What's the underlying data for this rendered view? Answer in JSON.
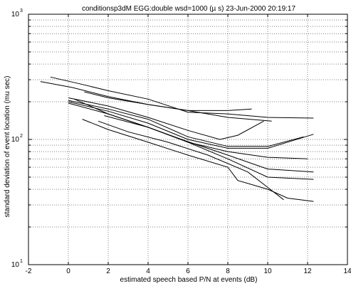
{
  "chart_data": {
    "type": "line",
    "title": "conditionsp3dM EGG:double wsd=1000 (µ s)  23-Jun-2000 20:19:17",
    "xlabel": "estimated speech based P/N at events (dB)",
    "ylabel": "standard deviation of event location (mu sec)",
    "xlim": [
      -2,
      14
    ],
    "ylim": [
      10,
      1000
    ],
    "yscale": "log",
    "grid": true,
    "x_ticks": [
      "-2",
      "0",
      "2",
      "4",
      "6",
      "8",
      "10",
      "12",
      "14"
    ],
    "y_ticks": [
      {
        "base": "10",
        "exp": "1",
        "value": 10
      },
      {
        "base": "10",
        "exp": "2",
        "value": 100
      },
      {
        "base": "10",
        "exp": "3",
        "value": 1000
      }
    ],
    "line_color": "#000000",
    "series": [
      {
        "x": [
          -1.4,
          0.2,
          2,
          4,
          6,
          8,
          9.2
        ],
        "y": [
          290,
          260,
          220,
          190,
          170,
          170,
          175
        ]
      },
      {
        "x": [
          -0.9,
          0.5,
          2,
          4,
          6,
          8,
          10,
          12.3
        ],
        "y": [
          315,
          280,
          245,
          210,
          165,
          160,
          150,
          148
        ]
      },
      {
        "x": [
          0.8,
          2,
          4,
          6,
          8,
          10.2
        ],
        "y": [
          240,
          215,
          190,
          170,
          150,
          140
        ]
      },
      {
        "x": [
          0,
          2,
          4,
          6,
          7.6,
          8.5,
          9.8
        ],
        "y": [
          215,
          185,
          150,
          118,
          100,
          108,
          140
        ]
      },
      {
        "x": [
          0,
          2,
          4,
          6,
          8,
          10,
          11.8
        ],
        "y": [
          205,
          175,
          145,
          105,
          88,
          88,
          105
        ]
      },
      {
        "x": [
          0,
          2,
          4,
          6,
          8,
          10,
          12.3
        ],
        "y": [
          200,
          168,
          135,
          100,
          85,
          85,
          110
        ]
      },
      {
        "x": [
          0,
          2,
          4,
          6,
          8,
          10,
          12
        ],
        "y": [
          195,
          160,
          125,
          95,
          80,
          72,
          70
        ]
      },
      {
        "x": [
          0.3,
          2,
          4,
          6,
          8,
          10,
          12.3
        ],
        "y": [
          210,
          160,
          125,
          96,
          75,
          58,
          55
        ]
      },
      {
        "x": [
          1.8,
          4,
          6,
          8,
          10,
          12.3
        ],
        "y": [
          155,
          125,
          95,
          70,
          50,
          48
        ]
      },
      {
        "x": [
          1.5,
          3,
          5,
          7,
          9,
          10.8
        ],
        "y": [
          140,
          115,
          95,
          75,
          55,
          33
        ]
      },
      {
        "x": [
          0.7,
          2,
          4,
          6,
          8,
          8.5,
          10,
          11,
          12.3
        ],
        "y": [
          145,
          120,
          95,
          75,
          60,
          47,
          40,
          34,
          32
        ]
      }
    ]
  }
}
